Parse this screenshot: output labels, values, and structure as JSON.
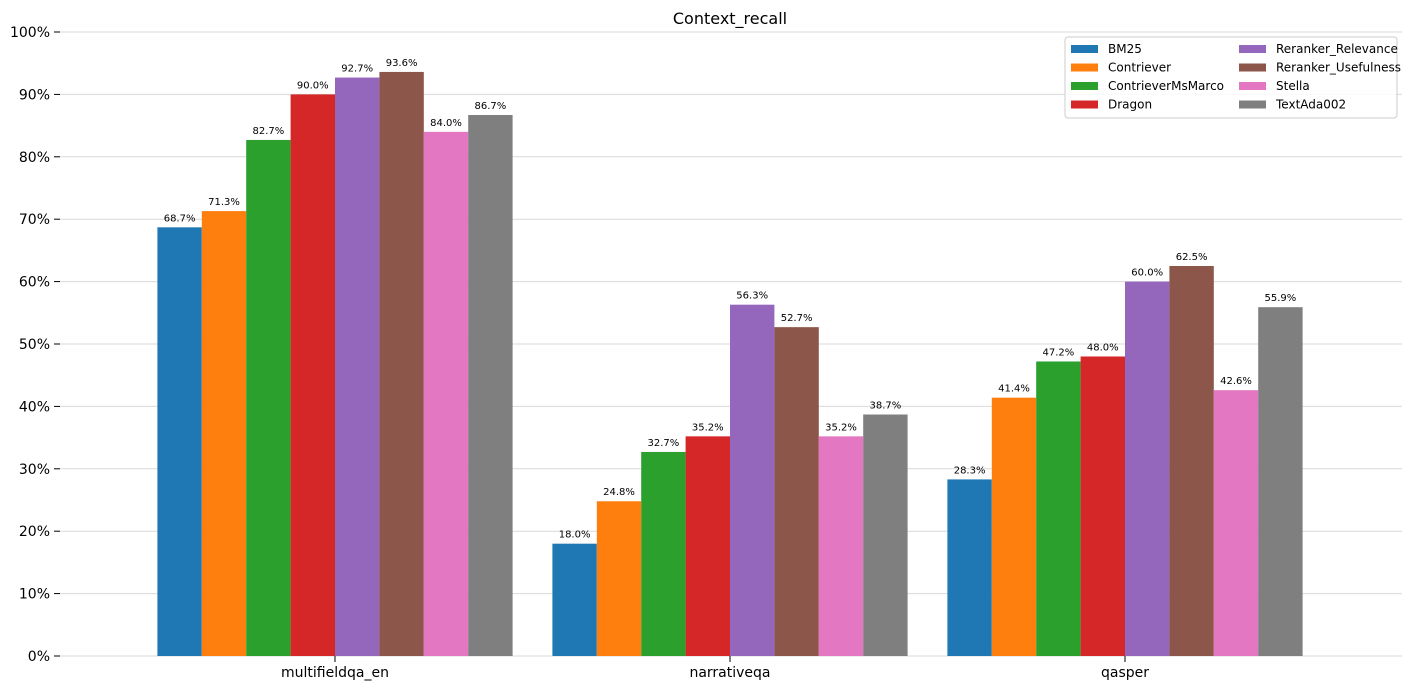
{
  "chart_data": {
    "type": "bar",
    "title": "Context_recall",
    "xlabel": "",
    "ylabel": "",
    "categories": [
      "multifieldqa_en",
      "narrativeqa",
      "qasper"
    ],
    "ylim": [
      0,
      100
    ],
    "y_ticks": [
      "0%",
      "10%",
      "20%",
      "30%",
      "40%",
      "50%",
      "60%",
      "70%",
      "80%",
      "90%",
      "100%"
    ],
    "grid": "horizontal",
    "legend_position": "top-right",
    "series": [
      {
        "name": "BM25",
        "color": "#1f77b4",
        "values": [
          68.7,
          18.0,
          28.3
        ],
        "labels": [
          "68.7%",
          "18.0%",
          "28.3%"
        ]
      },
      {
        "name": "Contriever",
        "color": "#ff7f0e",
        "values": [
          71.3,
          24.8,
          41.4
        ],
        "labels": [
          "71.3%",
          "24.8%",
          "41.4%"
        ]
      },
      {
        "name": "ContrieverMsMarco",
        "color": "#2ca02c",
        "values": [
          82.7,
          32.7,
          47.2
        ],
        "labels": [
          "82.7%",
          "32.7%",
          "47.2%"
        ]
      },
      {
        "name": "Dragon",
        "color": "#d62728",
        "values": [
          90.0,
          35.2,
          48.0
        ],
        "labels": [
          "90.0%",
          "35.2%",
          "48.0%"
        ]
      },
      {
        "name": "Reranker_Relevance",
        "color": "#9467bd",
        "values": [
          92.7,
          56.3,
          60.0
        ],
        "labels": [
          "92.7%",
          "56.3%",
          "60.0%"
        ]
      },
      {
        "name": "Reranker_Usefulness",
        "color": "#8c564b",
        "values": [
          93.6,
          52.7,
          62.5
        ],
        "labels": [
          "93.6%",
          "52.7%",
          "62.5%"
        ]
      },
      {
        "name": "Stella",
        "color": "#e377c2",
        "values": [
          84.0,
          35.2,
          42.6
        ],
        "labels": [
          "84.0%",
          "35.2%",
          "42.6%"
        ]
      },
      {
        "name": "TextAda002",
        "color": "#7f7f7f",
        "values": [
          86.7,
          38.7,
          55.9
        ],
        "labels": [
          "86.7%",
          "38.7%",
          "55.9%"
        ]
      }
    ]
  }
}
